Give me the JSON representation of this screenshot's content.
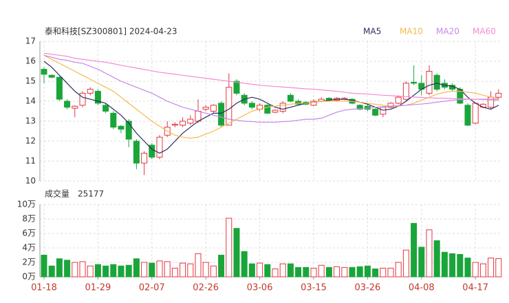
{
  "chart_data": {
    "type": "candlestick",
    "title": "泰和科技[SZ300801] 2024-04-23",
    "categories": [
      "01-18",
      null,
      null,
      null,
      null,
      null,
      null,
      "01-29",
      null,
      null,
      null,
      null,
      null,
      null,
      "02-07",
      null,
      null,
      null,
      null,
      null,
      null,
      "02-26",
      null,
      null,
      null,
      null,
      null,
      null,
      "03-06",
      null,
      null,
      null,
      null,
      null,
      null,
      "03-15",
      null,
      null,
      null,
      null,
      null,
      null,
      "03-26",
      null,
      null,
      null,
      null,
      null,
      null,
      "04-08",
      null,
      null,
      null,
      null,
      null,
      null,
      "04-17",
      null,
      null,
      null
    ],
    "open": [
      15.6,
      15.3,
      15.2,
      14.0,
      13.65,
      13.8,
      14.4,
      14.5,
      13.8,
      13.4,
      12.75,
      13.0,
      12.0,
      10.9,
      11.8,
      11.2,
      12.3,
      12.8,
      12.8,
      12.9,
      13.0,
      13.6,
      13.5,
      13.9,
      12.8,
      15.0,
      14.3,
      13.9,
      13.6,
      13.8,
      13.45,
      13.5,
      14.3,
      14.0,
      13.95,
      13.8,
      14.0,
      14.15,
      14.05,
      14.1,
      14.1,
      13.8,
      13.75,
      13.6,
      13.35,
      13.7,
      13.9,
      14.1,
      14.95,
      14.9,
      14.4,
      15.3,
      14.9,
      14.8,
      14.6,
      13.8,
      12.9,
      13.7,
      13.7,
      14.2
    ],
    "high": [
      15.7,
      15.35,
      15.25,
      14.1,
      13.8,
      14.5,
      14.7,
      14.6,
      13.9,
      13.5,
      12.8,
      13.1,
      12.1,
      11.5,
      11.9,
      12.3,
      13.0,
      12.95,
      13.2,
      13.3,
      14.1,
      13.8,
      13.85,
      14.0,
      15.4,
      15.1,
      14.4,
      14.0,
      13.9,
      13.85,
      13.6,
      14.0,
      14.4,
      14.1,
      14.0,
      14.1,
      14.2,
      14.2,
      14.2,
      14.2,
      14.15,
      13.85,
      13.85,
      13.65,
      13.75,
      13.95,
      14.3,
      15.0,
      15.8,
      15.3,
      15.8,
      15.4,
      15.1,
      14.9,
      14.7,
      13.9,
      13.95,
      13.9,
      14.5,
      14.6
    ],
    "low": [
      14.9,
      15.15,
      14.0,
      13.6,
      13.2,
      13.7,
      14.3,
      13.8,
      13.4,
      12.6,
      12.4,
      11.7,
      10.6,
      10.3,
      11.1,
      11.1,
      12.2,
      12.7,
      12.7,
      12.8,
      12.9,
      13.5,
      13.4,
      12.7,
      12.8,
      14.3,
      13.8,
      13.6,
      13.5,
      13.35,
      13.4,
      13.4,
      13.95,
      13.8,
      13.8,
      13.75,
      13.95,
      14.0,
      14.0,
      14.05,
      13.85,
      13.55,
      13.5,
      13.25,
      13.2,
      13.65,
      13.85,
      14.0,
      14.8,
      14.3,
      14.3,
      14.5,
      14.6,
      14.5,
      13.85,
      12.75,
      12.85,
      13.65,
      13.6,
      14.1
    ],
    "close": [
      15.35,
      15.2,
      14.1,
      13.7,
      13.75,
      14.4,
      14.6,
      13.9,
      13.5,
      12.7,
      12.6,
      12.1,
      10.9,
      11.4,
      11.2,
      12.2,
      12.7,
      12.85,
      13.0,
      13.1,
      13.5,
      13.7,
      13.8,
      12.8,
      14.7,
      14.4,
      13.9,
      13.7,
      13.8,
      13.4,
      13.55,
      13.9,
      14.0,
      13.85,
      13.85,
      14.0,
      14.1,
      14.05,
      14.15,
      14.15,
      13.9,
      13.6,
      13.6,
      13.3,
      13.7,
      13.9,
      14.2,
      14.9,
      14.9,
      14.6,
      15.5,
      14.6,
      14.7,
      14.6,
      13.9,
      12.8,
      13.9,
      13.85,
      14.2,
      14.4
    ],
    "up_color": "#e5333f",
    "down_color": "#1aa53a",
    "ylim": [
      10,
      17
    ],
    "yticks": [
      10,
      11,
      12,
      13,
      14,
      15,
      16,
      17
    ],
    "grid": true,
    "series": [
      {
        "name": "MA5",
        "color": "#2c2c5e",
        "values": [
          16.0,
          15.7,
          15.3,
          14.9,
          14.5,
          14.2,
          14.1,
          14.0,
          13.9,
          13.6,
          13.3,
          12.9,
          12.4,
          12.0,
          11.6,
          11.4,
          11.6,
          12.0,
          12.4,
          12.7,
          13.0,
          13.2,
          13.4,
          13.4,
          13.6,
          13.9,
          14.1,
          14.2,
          14.1,
          13.9,
          13.7,
          13.6,
          13.7,
          13.8,
          13.9,
          13.95,
          14.0,
          14.05,
          14.1,
          14.1,
          14.05,
          13.95,
          13.85,
          13.7,
          13.55,
          13.6,
          13.75,
          14.0,
          14.3,
          14.6,
          14.8,
          14.9,
          14.8,
          14.75,
          14.6,
          14.2,
          13.9,
          13.7,
          13.6,
          13.8
        ]
      },
      {
        "name": "MA10",
        "color": "#f5b94a",
        "values": [
          16.3,
          16.1,
          15.9,
          15.7,
          15.5,
          15.3,
          15.1,
          14.9,
          14.7,
          14.5,
          14.2,
          13.9,
          13.6,
          13.3,
          13.0,
          12.75,
          12.5,
          12.3,
          12.2,
          12.15,
          12.2,
          12.35,
          12.5,
          12.7,
          12.9,
          13.1,
          13.3,
          13.5,
          13.6,
          13.7,
          13.75,
          13.8,
          13.85,
          13.9,
          13.9,
          13.95,
          14.0,
          14.0,
          14.0,
          14.0,
          14.0,
          13.95,
          13.9,
          13.85,
          13.8,
          13.75,
          13.75,
          13.8,
          13.9,
          14.05,
          14.2,
          14.35,
          14.45,
          14.5,
          14.5,
          14.45,
          14.4,
          14.3,
          14.2,
          14.15
        ]
      },
      {
        "name": "MA20",
        "color": "#c586e8",
        "values": [
          16.3,
          16.2,
          16.1,
          16.05,
          15.95,
          15.9,
          15.75,
          15.6,
          15.4,
          15.2,
          15.0,
          14.85,
          14.7,
          14.55,
          14.4,
          14.2,
          14.0,
          13.85,
          13.7,
          13.6,
          13.5,
          13.4,
          13.3,
          13.2,
          13.1,
          13.05,
          13.0,
          12.98,
          12.95,
          12.95,
          12.95,
          12.98,
          13.0,
          13.05,
          13.1,
          13.1,
          13.15,
          13.3,
          13.45,
          13.55,
          13.6,
          13.63,
          13.66,
          13.7,
          13.72,
          13.75,
          13.78,
          13.8,
          13.83,
          13.86,
          13.9,
          13.95,
          14.0,
          14.05,
          14.08,
          14.1,
          14.1,
          14.1,
          14.1,
          14.1
        ]
      },
      {
        "name": "MA60",
        "color": "#f28cd0",
        "values": [
          16.4,
          16.35,
          16.3,
          16.25,
          16.15,
          16.1,
          16.05,
          16.0,
          15.95,
          15.88,
          15.8,
          15.73,
          15.66,
          15.59,
          15.52,
          15.45,
          15.4,
          15.35,
          15.3,
          15.25,
          15.2,
          15.15,
          15.1,
          15.05,
          15.0,
          14.95,
          14.9,
          14.85,
          14.8,
          14.77,
          14.74,
          14.71,
          14.68,
          14.65,
          14.62,
          14.6,
          14.57,
          14.53,
          14.5,
          14.45,
          14.4,
          14.38,
          14.36,
          14.33,
          14.3,
          14.28,
          14.25,
          14.23,
          14.21,
          14.19,
          14.17,
          14.15,
          14.15,
          14.13,
          14.12,
          14.11,
          14.1,
          14.08,
          14.06,
          14.05
        ]
      }
    ],
    "volume": {
      "title": "成交量",
      "values": [
        30000,
        15000,
        25000,
        23000,
        20000,
        21000,
        15000,
        17000,
        15000,
        17000,
        15000,
        16000,
        25000,
        20000,
        19000,
        22000,
        21000,
        12000,
        19000,
        18000,
        32000,
        20000,
        15000,
        30000,
        81000,
        67000,
        35000,
        18000,
        19000,
        17000,
        11000,
        18000,
        18000,
        13000,
        13000,
        12000,
        16000,
        13000,
        14000,
        13000,
        13000,
        14000,
        15000,
        11000,
        12000,
        12000,
        20000,
        37000,
        74000,
        41000,
        65000,
        50000,
        34000,
        32000,
        31000,
        26000,
        20000,
        18000,
        26000,
        25177
      ],
      "ylim": [
        0,
        100000
      ],
      "yticks": [
        {
          "value": 0,
          "label": "0万"
        },
        {
          "value": 20000,
          "label": "2万"
        },
        {
          "value": 40000,
          "label": "4万"
        },
        {
          "value": 60000,
          "label": "6万"
        },
        {
          "value": 80000,
          "label": "8万"
        },
        {
          "value": 100000,
          "label": "10万"
        }
      ]
    }
  }
}
